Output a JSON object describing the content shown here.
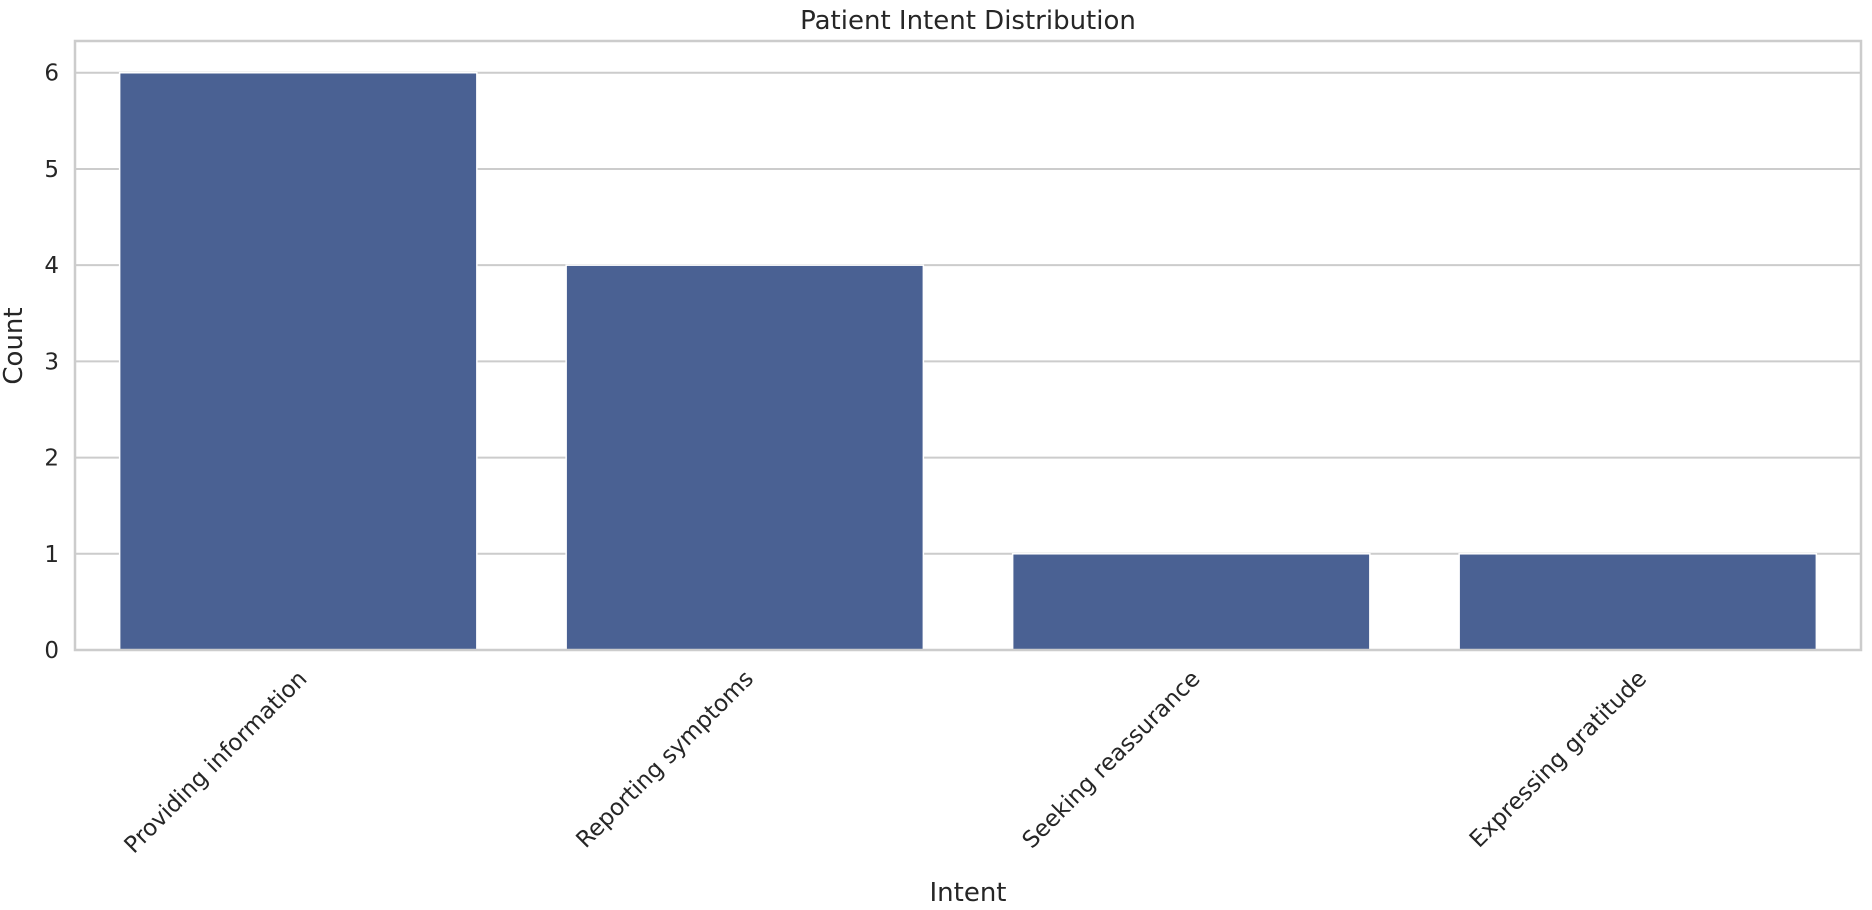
{
  "chart_data": {
    "type": "bar",
    "title": "Patient Intent Distribution",
    "xlabel": "Intent",
    "ylabel": "Count",
    "categories": [
      "Providing information",
      "Reporting symptoms",
      "Seeking reassurance",
      "Expressing gratitude"
    ],
    "values": [
      6,
      4,
      1,
      1
    ],
    "ylim": [
      0,
      6.33
    ],
    "yticks": [
      0,
      1,
      2,
      3,
      4,
      5,
      6
    ],
    "grid": "horizontal",
    "legend": "none",
    "bar_color": "#4a6193"
  }
}
